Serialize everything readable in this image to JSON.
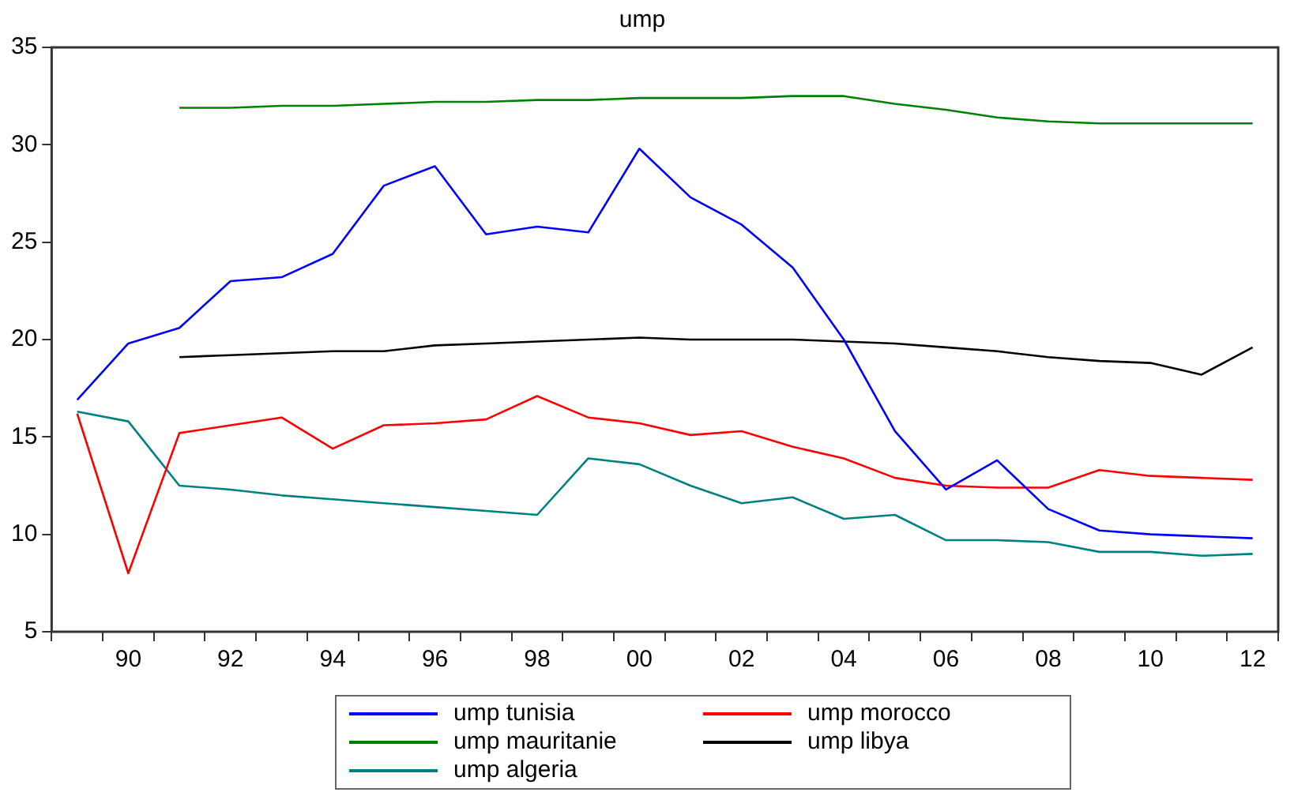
{
  "chart_data": {
    "type": "line",
    "title": "ump",
    "categories": [
      null,
      "90",
      null,
      "92",
      null,
      "94",
      null,
      "96",
      null,
      "98",
      null,
      "00",
      null,
      "02",
      null,
      "04",
      null,
      "06",
      null,
      "08",
      null,
      "10",
      null,
      "12"
    ],
    "series": [
      {
        "name": "ump tunisia",
        "color": "#0000ff",
        "values": [
          16.9,
          19.8,
          20.6,
          23.0,
          23.2,
          24.4,
          27.9,
          28.9,
          25.4,
          25.8,
          25.5,
          29.8,
          27.3,
          25.9,
          23.7,
          20.0,
          15.3,
          12.3,
          13.8,
          11.3,
          10.2,
          10.0,
          9.9,
          9.8
        ]
      },
      {
        "name": "ump morocco",
        "color": "#ff0000",
        "values": [
          16.2,
          8.0,
          15.2,
          15.6,
          16.0,
          14.4,
          15.6,
          15.7,
          15.9,
          17.1,
          16.0,
          15.7,
          15.1,
          15.3,
          14.5,
          13.9,
          12.9,
          12.5,
          12.4,
          12.4,
          13.3,
          13.0,
          12.9,
          12.8
        ]
      },
      {
        "name": "ump mauritanie",
        "color": "#008000",
        "values": [
          null,
          null,
          31.9,
          31.9,
          32.0,
          32.0,
          32.1,
          32.2,
          32.2,
          32.3,
          32.3,
          32.4,
          32.4,
          32.4,
          32.5,
          32.5,
          32.1,
          31.8,
          31.4,
          31.2,
          31.1,
          31.1,
          31.1,
          31.1
        ]
      },
      {
        "name": "ump libya",
        "color": "#000000",
        "values": [
          null,
          null,
          19.1,
          19.2,
          19.3,
          19.4,
          19.4,
          19.7,
          19.8,
          19.9,
          20.0,
          20.1,
          20.0,
          20.0,
          20.0,
          19.9,
          19.8,
          19.6,
          19.4,
          19.1,
          18.9,
          18.8,
          18.2,
          19.6
        ]
      },
      {
        "name": "ump algeria",
        "color": "#008080",
        "values": [
          16.3,
          15.8,
          12.5,
          12.3,
          12.0,
          11.8,
          11.6,
          11.4,
          11.2,
          11.0,
          13.9,
          13.6,
          12.5,
          11.6,
          11.9,
          10.8,
          11.0,
          9.7,
          9.7,
          9.6,
          9.1,
          9.1,
          8.9,
          9.0
        ]
      }
    ],
    "ylim": [
      5,
      35
    ],
    "yticks": [
      5,
      10,
      15,
      20,
      25,
      30,
      35
    ],
    "grid": false,
    "legend": "bottom",
    "marker": "none",
    "line_style": "solid"
  }
}
